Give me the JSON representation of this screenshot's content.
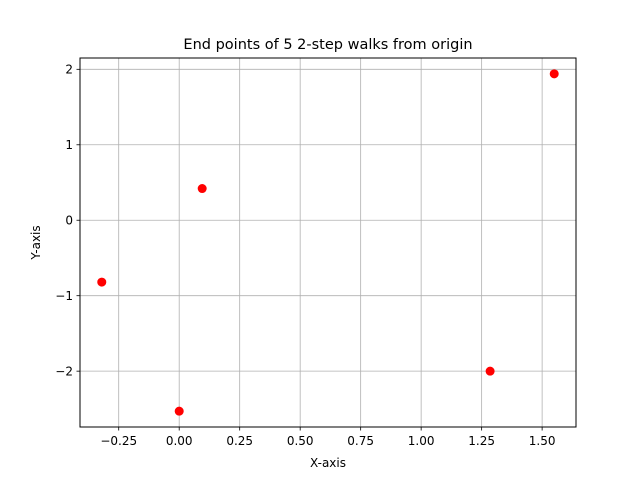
{
  "chart_data": {
    "type": "scatter",
    "title": "End points of 5 2-step walks from origin",
    "xlabel": "X-axis",
    "ylabel": "Y-axis",
    "xlim": [
      -0.41,
      1.64
    ],
    "ylim": [
      -2.74,
      2.15
    ],
    "grid": true,
    "point_color": "#ff0000",
    "x_ticks": [
      {
        "value": -0.25,
        "label": "−0.25"
      },
      {
        "value": 0.0,
        "label": "0.00"
      },
      {
        "value": 0.25,
        "label": "0.25"
      },
      {
        "value": 0.5,
        "label": "0.50"
      },
      {
        "value": 0.75,
        "label": "0.75"
      },
      {
        "value": 1.0,
        "label": "1.00"
      },
      {
        "value": 1.25,
        "label": "1.25"
      },
      {
        "value": 1.5,
        "label": "1.50"
      }
    ],
    "y_ticks": [
      {
        "value": -2,
        "label": "−2"
      },
      {
        "value": -1,
        "label": "−1"
      },
      {
        "value": 0,
        "label": "0"
      },
      {
        "value": 1,
        "label": "1"
      },
      {
        "value": 2,
        "label": "2"
      }
    ],
    "points": [
      {
        "x": 1.55,
        "y": 1.94
      },
      {
        "x": 0.095,
        "y": 0.42
      },
      {
        "x": -0.32,
        "y": -0.82
      },
      {
        "x": 1.285,
        "y": -2.0
      },
      {
        "x": 0.0,
        "y": -2.53
      }
    ]
  }
}
